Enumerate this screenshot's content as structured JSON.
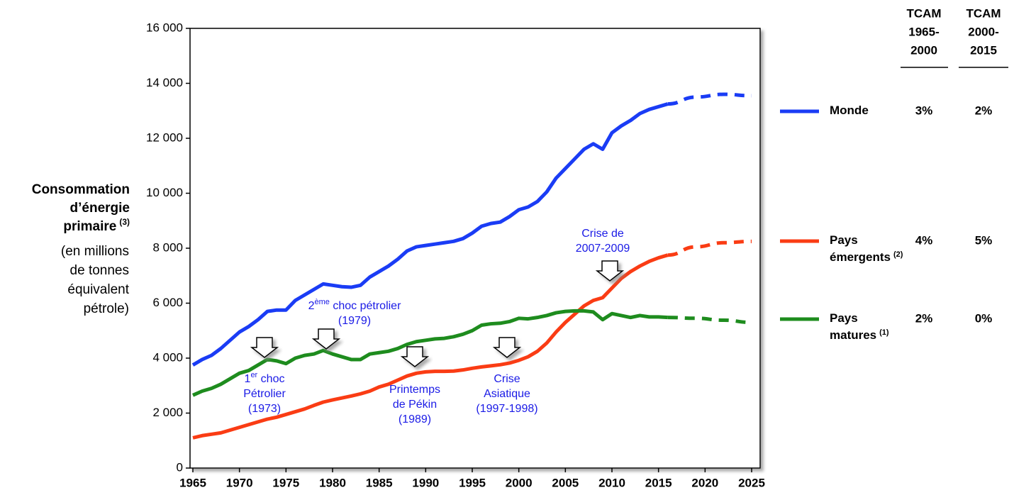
{
  "chart_data": {
    "type": "line",
    "ylabel_bold": [
      "Consommation",
      "d’énergie",
      "primaire"
    ],
    "ylabel_note": "(3)",
    "ylabel_lines": [
      "(en millions",
      "de tonnes",
      "équivalent",
      "pétrole)"
    ],
    "x": [
      1965,
      1966,
      1967,
      1968,
      1969,
      1970,
      1971,
      1972,
      1973,
      1974,
      1975,
      1976,
      1977,
      1978,
      1979,
      1980,
      1981,
      1982,
      1983,
      1984,
      1985,
      1986,
      1987,
      1988,
      1989,
      1990,
      1991,
      1992,
      1993,
      1994,
      1995,
      1996,
      1997,
      1998,
      1999,
      2000,
      2001,
      2002,
      2003,
      2004,
      2005,
      2006,
      2007,
      2008,
      2009,
      2010,
      2011,
      2012,
      2013,
      2014,
      2015,
      2016
    ],
    "x_projection": [
      2016,
      2019,
      2022,
      2025
    ],
    "xlim": [
      1965,
      2025
    ],
    "xticks": [
      1965,
      1970,
      1975,
      1980,
      1985,
      1990,
      1995,
      2000,
      2005,
      2010,
      2015,
      2020,
      2025
    ],
    "ylim": [
      0,
      16000
    ],
    "yticks": [
      0,
      {
        "value": 2000,
        "label": "2 000"
      },
      {
        "value": 4000,
        "label": "4 000"
      },
      {
        "value": 6000,
        "label": "6 000"
      },
      {
        "value": 8000,
        "label": "8 000"
      },
      {
        "value": 10000,
        "label": "10 000"
      },
      {
        "value": 12000,
        "label": "12 000"
      },
      {
        "value": 14000,
        "label": "14 000"
      },
      {
        "value": 16000,
        "label": "16 000"
      }
    ],
    "tcam_headers": [
      [
        "TCAM",
        "1965-",
        "2000"
      ],
      [
        "TCAM",
        "2000-",
        "2015"
      ]
    ],
    "series": [
      {
        "name_lines": [
          "Monde"
        ],
        "note": null,
        "color": "#1a3cf5",
        "tcam": [
          "3%",
          "2%"
        ],
        "values": [
          3750,
          3950,
          4100,
          4350,
          4650,
          4950,
          5150,
          5400,
          5700,
          5750,
          5750,
          6100,
          6300,
          6500,
          6700,
          6650,
          6600,
          6580,
          6650,
          6950,
          7150,
          7350,
          7600,
          7900,
          8050,
          8100,
          8150,
          8200,
          8250,
          8350,
          8550,
          8800,
          8900,
          8950,
          9150,
          9400,
          9500,
          9700,
          10050,
          10550,
          10900,
          11250,
          11600,
          11800,
          11600,
          12200,
          12450,
          12650,
          12900,
          13050,
          13150,
          13250
        ],
        "projection": [
          13250,
          13500,
          13600,
          13550
        ]
      },
      {
        "name_lines": [
          "Pays",
          "émergents"
        ],
        "note": "(2)",
        "color": "#fa3c14",
        "tcam": [
          "4%",
          "5%"
        ],
        "values": [
          1100,
          1180,
          1230,
          1280,
          1380,
          1480,
          1580,
          1680,
          1780,
          1850,
          1950,
          2050,
          2150,
          2280,
          2400,
          2480,
          2550,
          2620,
          2700,
          2800,
          2950,
          3050,
          3200,
          3350,
          3450,
          3500,
          3520,
          3520,
          3530,
          3570,
          3630,
          3680,
          3720,
          3760,
          3820,
          3920,
          4050,
          4250,
          4550,
          4950,
          5300,
          5600,
          5900,
          6100,
          6200,
          6550,
          6900,
          7150,
          7350,
          7520,
          7650,
          7750
        ],
        "projection": [
          7750,
          8050,
          8200,
          8250
        ]
      },
      {
        "name_lines": [
          "Pays",
          "matures"
        ],
        "note": "(1)",
        "color": "#1e8c1e",
        "tcam": [
          "2%",
          "0%"
        ],
        "values": [
          2650,
          2800,
          2900,
          3050,
          3250,
          3450,
          3550,
          3750,
          3950,
          3900,
          3800,
          4000,
          4100,
          4150,
          4280,
          4150,
          4050,
          3950,
          3950,
          4150,
          4200,
          4250,
          4350,
          4500,
          4600,
          4650,
          4700,
          4720,
          4780,
          4870,
          5000,
          5200,
          5250,
          5270,
          5330,
          5450,
          5430,
          5480,
          5550,
          5650,
          5700,
          5720,
          5720,
          5680,
          5400,
          5620,
          5550,
          5480,
          5550,
          5500,
          5500,
          5480
        ],
        "projection": [
          5480,
          5450,
          5380,
          5300
        ]
      }
    ],
    "annotations": [
      {
        "lines": [
          [
            "1",
            "er",
            " choc"
          ],
          [
            "Pétrolier"
          ],
          [
            "(1973)"
          ]
        ]
      },
      {
        "lines": [
          [
            "2",
            "ème",
            " choc pétrolier"
          ],
          [
            "(1979)"
          ]
        ]
      },
      {
        "lines": [
          [
            "Printemps"
          ],
          [
            "de Pékin"
          ],
          [
            "(1989)"
          ]
        ]
      },
      {
        "lines": [
          [
            "Crise"
          ],
          [
            "Asiatique"
          ],
          [
            "(1997-1998)"
          ]
        ]
      },
      {
        "lines": [
          [
            "Crise de"
          ],
          [
            "2007-2009"
          ]
        ]
      }
    ]
  }
}
